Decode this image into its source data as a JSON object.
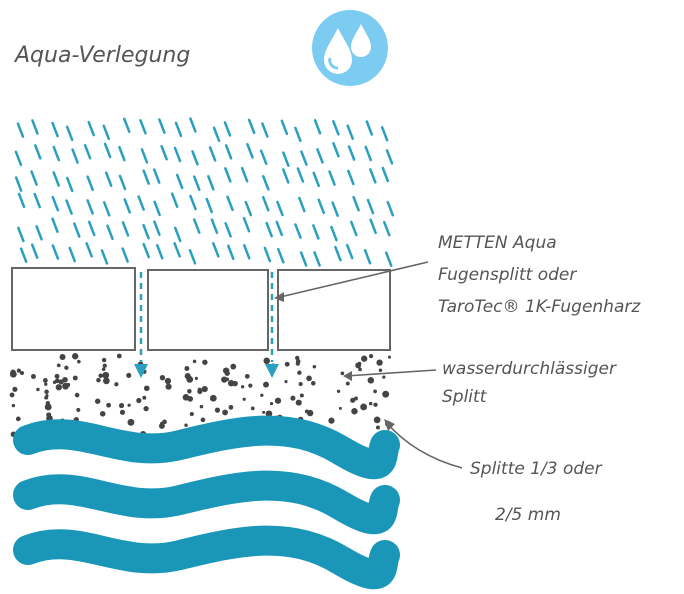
{
  "title": "Aqua-Verlegung",
  "labels": [
    {
      "lines": [
        "METTEN Aqua",
        "Fugensplitt oder",
        "TaroTec® 1K-Fugenharz"
      ]
    },
    {
      "lines": [
        "wasserdurchlässiger",
        "Splitt"
      ]
    },
    {
      "lines": [
        "Splitte 1/3 oder",
        "2/5 mm"
      ]
    }
  ]
}
